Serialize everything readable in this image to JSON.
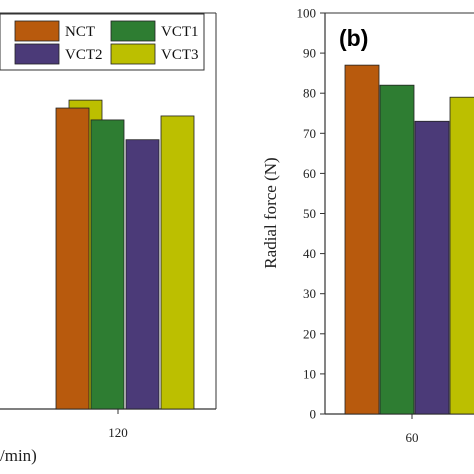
{
  "chart_data": [
    {
      "type": "bar",
      "panel": "a",
      "xlabel": "/min)",
      "categories": [
        "",
        "120"
      ],
      "series": [
        {
          "name": "NCT",
          "color": "#b85a0d",
          "values": [
            null,
            76
          ]
        },
        {
          "name": "VCT1",
          "color": "#2e7d32",
          "values": [
            null,
            73
          ]
        },
        {
          "name": "VCT2",
          "color": "#4b3a78",
          "values": [
            null,
            68
          ]
        },
        {
          "name": "VCT3",
          "color": "#bcbf00",
          "values": [
            78,
            74
          ]
        }
      ],
      "legend": "top-right"
    },
    {
      "type": "bar",
      "panel": "b",
      "panel_label": "(b)",
      "ylabel": "Radial force (N)",
      "ylim": [
        0,
        100
      ],
      "yticks": [
        "0",
        "10",
        "20",
        "30",
        "40",
        "50",
        "60",
        "70",
        "80",
        "90",
        "100"
      ],
      "categories": [
        "60"
      ],
      "series": [
        {
          "name": "NCT",
          "color": "#b85a0d",
          "values": [
            87
          ]
        },
        {
          "name": "VCT1",
          "color": "#2e7d32",
          "values": [
            82
          ]
        },
        {
          "name": "VCT2",
          "color": "#4b3a78",
          "values": [
            73
          ]
        },
        {
          "name": "VCT3",
          "color": "#bcbf00",
          "values": [
            79
          ]
        }
      ]
    }
  ]
}
